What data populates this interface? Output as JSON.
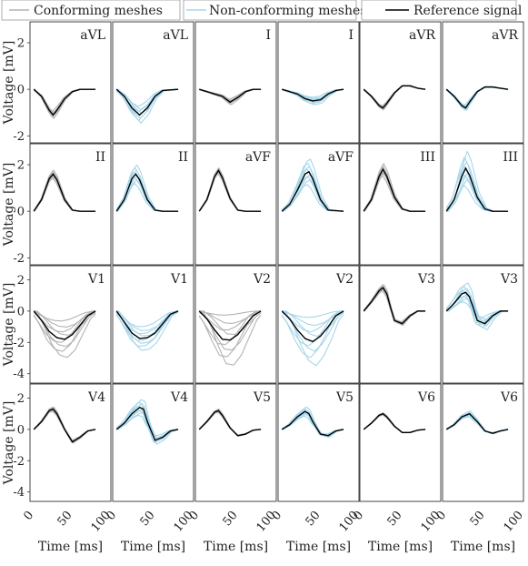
{
  "legend": {
    "conforming": "Conforming meshes",
    "nonconforming": "Non-conforming meshes",
    "reference": "Reference signal"
  },
  "colors": {
    "conforming": "#b3b3b3",
    "nonconforming": "#a6d6ea",
    "reference": "#000000"
  },
  "chart_data": [
    {
      "type": "line",
      "grid": "2x6 rows of panels? no: 4 rows x 6 columns",
      "xlabel": "Time [ms]",
      "ylabel": "Voltage [mV]",
      "xlim": [
        -5,
        100
      ],
      "xticks": [
        0,
        50,
        100
      ],
      "rows": [
        {
          "ylim": [
            -2.3,
            2.9
          ],
          "yticks": [
            -2,
            0,
            2
          ],
          "panels": [
            {
              "label": "aVL",
              "variant": "conforming",
              "reference": {
                "x": [
                  0,
                  10,
                  20,
                  25,
                  30,
                  40,
                  50,
                  60,
                  80
                ],
                "y": [
                  0,
                  -0.3,
                  -0.9,
                  -1.1,
                  -0.9,
                  -0.4,
                  -0.1,
                  0.0,
                  0.0
                ]
              },
              "spread": 0.2
            },
            {
              "label": "aVL",
              "variant": "nonconforming",
              "reference": {
                "x": [
                  0,
                  10,
                  20,
                  30,
                  40,
                  50,
                  60,
                  80
                ],
                "y": [
                  0,
                  -0.3,
                  -0.8,
                  -1.1,
                  -0.8,
                  -0.3,
                  -0.05,
                  0.0
                ]
              },
              "spread": 0.45
            },
            {
              "label": "I",
              "variant": "conforming",
              "reference": {
                "x": [
                  0,
                  10,
                  20,
                  30,
                  40,
                  50,
                  60,
                  70,
                  80
                ],
                "y": [
                  0,
                  -0.1,
                  -0.2,
                  -0.3,
                  -0.55,
                  -0.35,
                  -0.1,
                  0.0,
                  0.0
                ]
              },
              "spread": 0.3
            },
            {
              "label": "I",
              "variant": "nonconforming",
              "reference": {
                "x": [
                  0,
                  10,
                  20,
                  30,
                  40,
                  50,
                  60,
                  70,
                  80
                ],
                "y": [
                  0,
                  -0.1,
                  -0.2,
                  -0.4,
                  -0.5,
                  -0.45,
                  -0.2,
                  -0.05,
                  0.0
                ]
              },
              "spread": 0.45
            },
            {
              "label": "aVR",
              "variant": "conforming",
              "reference": {
                "x": [
                  0,
                  10,
                  20,
                  25,
                  30,
                  40,
                  50,
                  60,
                  70,
                  80
                ],
                "y": [
                  0,
                  -0.3,
                  -0.7,
                  -0.8,
                  -0.6,
                  -0.15,
                  0.15,
                  0.15,
                  0.05,
                  0.0
                ]
              },
              "spread": 0.15
            },
            {
              "label": "aVR",
              "variant": "nonconforming",
              "reference": {
                "x": [
                  0,
                  10,
                  20,
                  25,
                  30,
                  40,
                  50,
                  60,
                  70,
                  80
                ],
                "y": [
                  0,
                  -0.3,
                  -0.7,
                  -0.8,
                  -0.55,
                  -0.1,
                  0.1,
                  0.1,
                  0.05,
                  0.0
                ]
              },
              "spread": 0.2
            }
          ]
        },
        {
          "ylim": [
            -2.3,
            2.9
          ],
          "yticks": [
            -2,
            0,
            2
          ],
          "panels": [
            {
              "label": "II",
              "variant": "conforming",
              "reference": {
                "x": [
                  0,
                  10,
                  20,
                  25,
                  30,
                  40,
                  50,
                  60,
                  80
                ],
                "y": [
                  0,
                  0.5,
                  1.4,
                  1.6,
                  1.35,
                  0.5,
                  0.05,
                  0.0,
                  0.0
                ]
              },
              "spread": 0.15
            },
            {
              "label": "II",
              "variant": "nonconforming",
              "reference": {
                "x": [
                  0,
                  10,
                  20,
                  25,
                  30,
                  40,
                  50,
                  60,
                  80
                ],
                "y": [
                  0,
                  0.5,
                  1.4,
                  1.6,
                  1.35,
                  0.5,
                  0.05,
                  0.0,
                  0.0
                ]
              },
              "spread": 0.35
            },
            {
              "label": "aVF",
              "variant": "conforming",
              "reference": {
                "x": [
                  0,
                  10,
                  20,
                  25,
                  30,
                  40,
                  50,
                  60,
                  80
                ],
                "y": [
                  0,
                  0.5,
                  1.5,
                  1.75,
                  1.45,
                  0.55,
                  0.05,
                  0.0,
                  0.0
                ]
              },
              "spread": 0.1
            },
            {
              "label": "aVF",
              "variant": "nonconforming",
              "reference": {
                "x": [
                  0,
                  10,
                  20,
                  30,
                  35,
                  40,
                  50,
                  60,
                  80
                ],
                "y": [
                  0,
                  0.3,
                  0.9,
                  1.6,
                  1.7,
                  1.4,
                  0.5,
                  0.05,
                  0.0
                ]
              },
              "spread": 0.45
            },
            {
              "label": "III",
              "variant": "conforming",
              "reference": {
                "x": [
                  0,
                  10,
                  20,
                  25,
                  30,
                  40,
                  50,
                  60,
                  80
                ],
                "y": [
                  0,
                  0.5,
                  1.5,
                  1.8,
                  1.5,
                  0.6,
                  0.1,
                  0.0,
                  0.0
                ]
              },
              "spread": 0.2
            },
            {
              "label": "III",
              "variant": "nonconforming",
              "reference": {
                "x": [
                  0,
                  10,
                  20,
                  25,
                  30,
                  40,
                  50,
                  60,
                  80
                ],
                "y": [
                  0,
                  0.5,
                  1.5,
                  1.85,
                  1.55,
                  0.6,
                  0.1,
                  0.0,
                  0.0
                ]
              },
              "spread": 0.55
            }
          ]
        },
        {
          "ylim": [
            -4.6,
            2.9
          ],
          "yticks": [
            -4,
            -2,
            0,
            2
          ],
          "panels": [
            {
              "label": "V1",
              "variant": "conforming",
              "reference": {
                "x": [
                  0,
                  10,
                  20,
                  30,
                  40,
                  50,
                  60,
                  70,
                  80
                ],
                "y": [
                  0,
                  -0.6,
                  -1.3,
                  -1.7,
                  -1.8,
                  -1.5,
                  -0.9,
                  -0.3,
                  0.0
                ]
              },
              "spread": 0.9
            },
            {
              "label": "V1",
              "variant": "nonconforming",
              "reference": {
                "x": [
                  0,
                  10,
                  20,
                  30,
                  40,
                  50,
                  60,
                  70,
                  80
                ],
                "y": [
                  0,
                  -0.7,
                  -1.4,
                  -1.75,
                  -1.7,
                  -1.4,
                  -0.8,
                  -0.2,
                  0.0
                ]
              },
              "spread": 0.6
            },
            {
              "label": "V2",
              "variant": "conforming",
              "reference": {
                "x": [
                  0,
                  10,
                  20,
                  30,
                  40,
                  50,
                  60,
                  70,
                  80
                ],
                "y": [
                  0,
                  -0.5,
                  -1.2,
                  -1.8,
                  -1.85,
                  -1.5,
                  -0.9,
                  -0.3,
                  0.0
                ]
              },
              "spread": 1.2
            },
            {
              "label": "V2",
              "variant": "nonconforming",
              "reference": {
                "x": [
                  0,
                  10,
                  20,
                  30,
                  40,
                  50,
                  60,
                  70,
                  80
                ],
                "y": [
                  0,
                  -0.5,
                  -1.2,
                  -1.75,
                  -1.95,
                  -1.6,
                  -1.0,
                  -0.3,
                  0.0
                ]
              },
              "spread": 1.1
            },
            {
              "label": "V3",
              "variant": "conforming",
              "reference": {
                "x": [
                  0,
                  10,
                  20,
                  25,
                  30,
                  35,
                  40,
                  50,
                  60,
                  70,
                  80
                ],
                "y": [
                  0,
                  0.6,
                  1.3,
                  1.5,
                  1.1,
                  0.2,
                  -0.6,
                  -0.8,
                  -0.3,
                  0.0,
                  0.0
                ]
              },
              "spread": 0.2
            },
            {
              "label": "V3",
              "variant": "nonconforming",
              "reference": {
                "x": [
                  0,
                  10,
                  20,
                  25,
                  30,
                  35,
                  40,
                  50,
                  60,
                  70,
                  80
                ],
                "y": [
                  0,
                  0.5,
                  1.1,
                  1.2,
                  0.9,
                  0.2,
                  -0.6,
                  -0.8,
                  -0.3,
                  0.0,
                  0.0
                ]
              },
              "spread": 0.7
            }
          ]
        },
        {
          "ylim": [
            -4.6,
            2.9
          ],
          "yticks": [
            -4,
            -2,
            0,
            2
          ],
          "panels": [
            {
              "label": "V4",
              "variant": "conforming",
              "reference": {
                "x": [
                  0,
                  10,
                  20,
                  25,
                  30,
                  40,
                  50,
                  60,
                  70,
                  80
                ],
                "y": [
                  0,
                  0.5,
                  1.2,
                  1.3,
                  1.0,
                  0.0,
                  -0.8,
                  -0.5,
                  -0.1,
                  0.0
                ]
              },
              "spread": 0.15
            },
            {
              "label": "V4",
              "variant": "nonconforming",
              "reference": {
                "x": [
                  0,
                  10,
                  20,
                  30,
                  35,
                  40,
                  50,
                  60,
                  70,
                  80
                ],
                "y": [
                  0,
                  0.4,
                  1.0,
                  1.4,
                  1.3,
                  0.5,
                  -0.7,
                  -0.5,
                  -0.1,
                  0.0
                ]
              },
              "spread": 0.5
            },
            {
              "label": "V5",
              "variant": "conforming",
              "reference": {
                "x": [
                  0,
                  10,
                  20,
                  25,
                  30,
                  40,
                  50,
                  60,
                  70,
                  80
                ],
                "y": [
                  0,
                  0.5,
                  1.1,
                  1.2,
                  0.9,
                  0.1,
                  -0.4,
                  -0.3,
                  -0.05,
                  0.0
                ]
              },
              "spread": 0.12
            },
            {
              "label": "V5",
              "variant": "nonconforming",
              "reference": {
                "x": [
                  0,
                  10,
                  20,
                  30,
                  35,
                  40,
                  50,
                  60,
                  70,
                  80
                ],
                "y": [
                  0,
                  0.3,
                  0.8,
                  1.15,
                  1.0,
                  0.5,
                  -0.3,
                  -0.4,
                  -0.1,
                  0.0
                ]
              },
              "spread": 0.35
            },
            {
              "label": "V6",
              "variant": "conforming",
              "reference": {
                "x": [
                  0,
                  10,
                  20,
                  25,
                  30,
                  40,
                  50,
                  60,
                  70,
                  80
                ],
                "y": [
                  0,
                  0.4,
                  0.9,
                  1.0,
                  0.8,
                  0.2,
                  -0.2,
                  -0.2,
                  -0.05,
                  0.0
                ]
              },
              "spread": 0.1
            },
            {
              "label": "V6",
              "variant": "nonconforming",
              "reference": {
                "x": [
                  0,
                  10,
                  20,
                  30,
                  40,
                  50,
                  60,
                  70,
                  80
                ],
                "y": [
                  0,
                  0.3,
                  0.8,
                  1.0,
                  0.5,
                  -0.1,
                  -0.25,
                  -0.1,
                  0.0
                ]
              },
              "spread": 0.25
            }
          ]
        }
      ]
    }
  ]
}
